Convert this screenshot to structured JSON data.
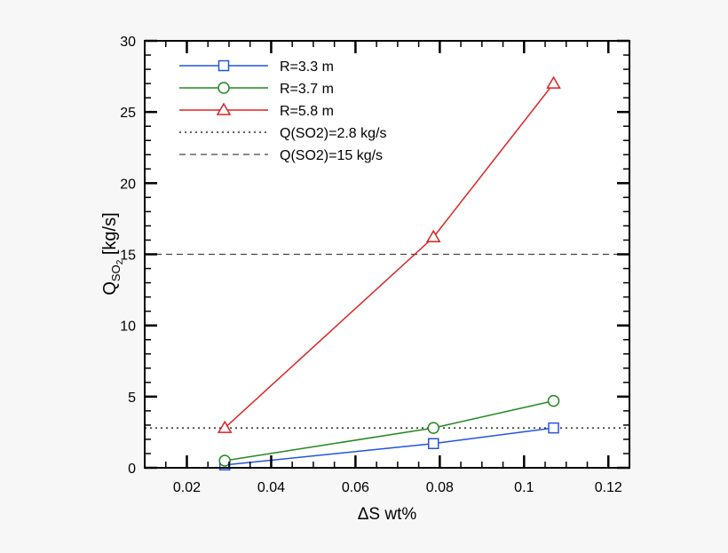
{
  "chart_data": {
    "type": "line",
    "title": "",
    "xlabel": "ΔS wt%",
    "ylabel": "Q",
    "ylabel_subscript": "SO",
    "ylabel_sub2": "2",
    "ylabel_unit": " [kg/s]",
    "xlim": [
      0.01,
      0.125
    ],
    "ylim": [
      0,
      30
    ],
    "xticks": [
      0.02,
      0.04,
      0.06,
      0.08,
      0.1,
      0.12
    ],
    "xtick_labels": [
      "0.02",
      "0.04",
      "0.06",
      "0.08",
      "0.1",
      "0.12"
    ],
    "yticks": [
      0,
      5,
      10,
      15,
      20,
      25,
      30
    ],
    "ytick_labels": [
      "0",
      "5",
      "10",
      "15",
      "20",
      "25",
      "30"
    ],
    "grid": false,
    "legend_placement": "top-left",
    "series": [
      {
        "name": "R=3.3 m",
        "color": "#2255dd",
        "marker": "square",
        "x": [
          0.029,
          0.0785,
          0.107
        ],
        "y": [
          0.2,
          1.7,
          2.8
        ]
      },
      {
        "name": "R=3.7 m",
        "color": "#228822",
        "marker": "circle",
        "x": [
          0.029,
          0.0785,
          0.107
        ],
        "y": [
          0.5,
          2.8,
          4.7
        ]
      },
      {
        "name": "R=5.8 m",
        "color": "#dd2222",
        "marker": "triangle",
        "x": [
          0.029,
          0.0785,
          0.107
        ],
        "y": [
          2.8,
          16.2,
          27.0
        ]
      }
    ],
    "reference_lines": [
      {
        "name": "Q(SO2)=2.8 kg/s",
        "y": 2.8,
        "style": "dotted",
        "color": "#000000"
      },
      {
        "name": "Q(SO2)=15 kg/s",
        "y": 15,
        "style": "dashed",
        "color": "#444444"
      }
    ]
  }
}
